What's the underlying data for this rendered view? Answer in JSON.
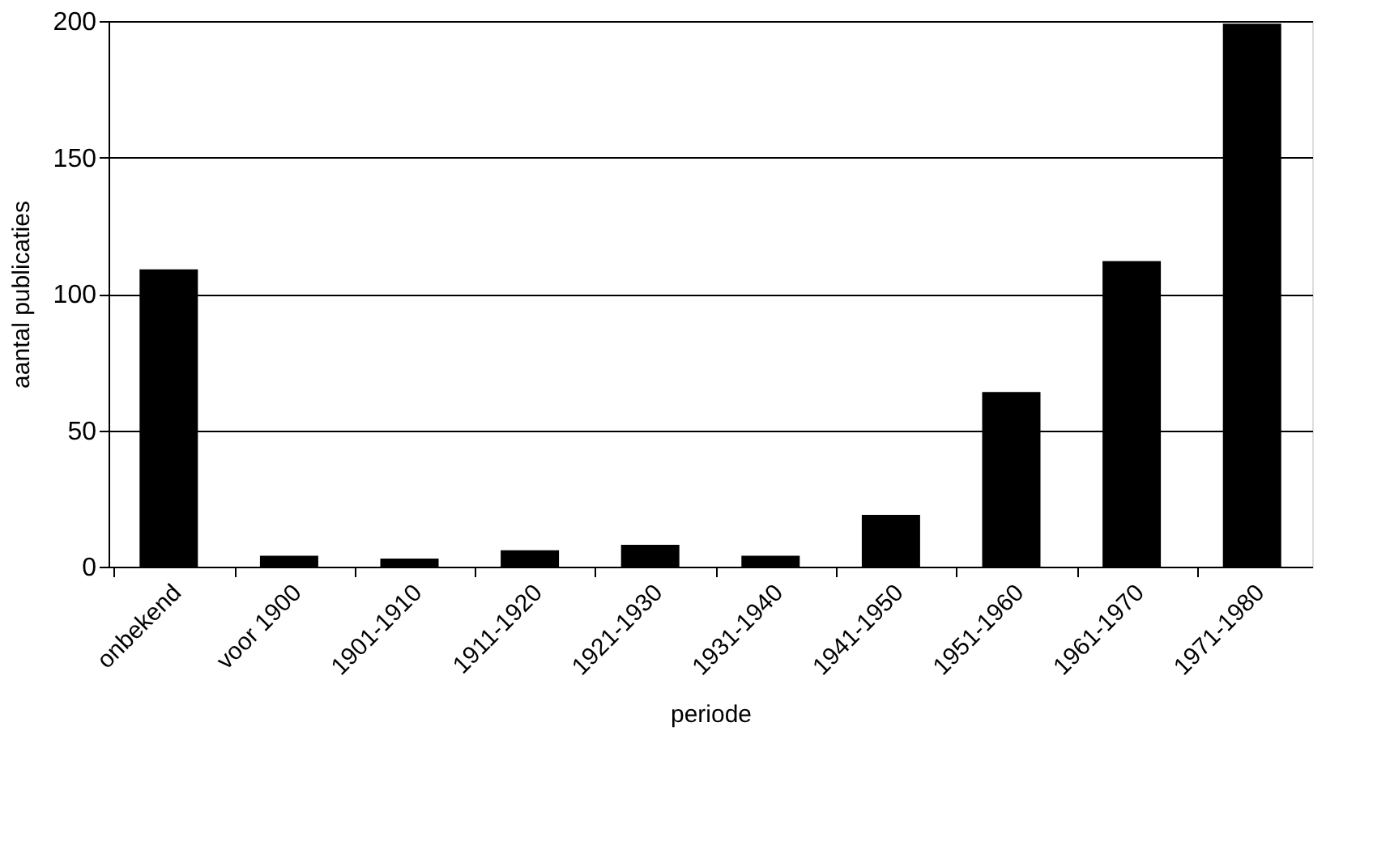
{
  "chart_data": {
    "type": "bar",
    "xlabel": "periode",
    "ylabel": "aantal publicaties",
    "categories": [
      "onbekend",
      "voor 1900",
      "1901-1910",
      "1911-1920",
      "1921-1930",
      "1931-1940",
      "1941-1950",
      "1951-1960",
      "1961-1970",
      "1971-1980"
    ],
    "values": [
      109,
      4,
      3,
      6,
      8,
      4,
      19,
      64,
      112,
      199
    ],
    "color": "#000000",
    "ylim": [
      0,
      200
    ],
    "yticks": [
      0,
      50,
      100,
      150,
      200
    ],
    "grid": "y"
  }
}
